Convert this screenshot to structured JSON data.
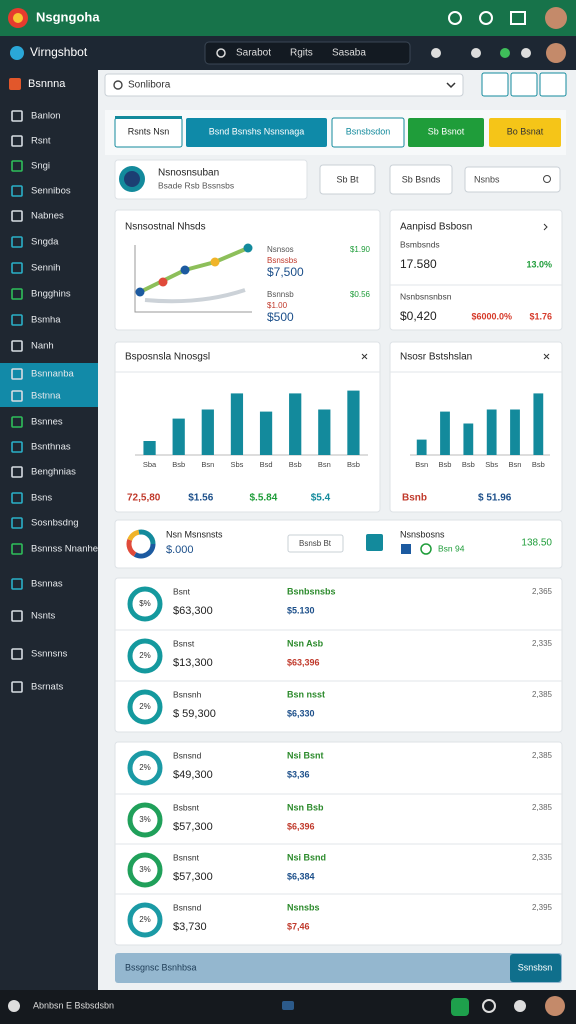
{
  "header": {
    "title": "Nsgngoha"
  },
  "toolbar": {
    "title": "Virngshbot",
    "search_items": [
      "Sarabot",
      "Rgits",
      "Sasaba"
    ]
  },
  "sidebar": {
    "title": "Bsnnna",
    "items": [
      "Banlon",
      "Rsnt",
      "Sngi",
      "Sennibos",
      "Nabnes",
      "Sngda",
      "Sennih",
      "Bngghins",
      "Bsmha",
      "Nanh",
      "Bsnnanba",
      "Bstnna",
      "Bsnnes",
      "Bsnthnas",
      "Benghnias",
      "Bsns",
      "Sosnbsdng",
      "Bsnnss Nnanhe",
      "Bsnnas",
      "Nsnts",
      "Ssnnsns",
      "Bsrnats"
    ],
    "active": [
      10,
      11
    ]
  },
  "search": {
    "placeholder": "Sonlibora"
  },
  "tabs": [
    "Rsnts Nsn",
    "Bsnd Bsnshs Nsnsnaga",
    "Bsnsbsdon",
    "Sb Bsnot",
    "Bo Bsnat"
  ],
  "profile": {
    "name": "Nsnosnsuban",
    "subtitle": "Bsade Rsb Bssnsbs",
    "buttons": [
      "Sb Bt",
      "Sb Bsnds"
    ],
    "input": "Nsnbs"
  },
  "overview": {
    "title": "Nsnsostnal Nhsds",
    "stats": [
      {
        "label": "Nsnsos",
        "value": "$7,500",
        "change": "$1.90",
        "sub": "Bsnssbs"
      },
      {
        "label": "Bsnnsb",
        "value": "$500",
        "change": "$0.56",
        "sub": "$1.00"
      }
    ]
  },
  "applied": {
    "title": "Aanpisd Bsbosn",
    "rows": [
      {
        "label": "Bsmbsnds",
        "value": "17.580",
        "changes": [
          "13.0%"
        ]
      },
      {
        "label": "Nsnbsnsnbsn",
        "value": "$0,420",
        "changes": [
          "$6000.0%",
          "$1.76"
        ]
      }
    ]
  },
  "bar_charts": [
    {
      "title": "Bsposnsla Nnosgsl",
      "categories": [
        "Sba",
        "Bsb",
        "Bsn",
        "Sbs",
        "Bsd",
        "Bsb",
        "Bsn",
        "Bsb"
      ],
      "values": [
        20,
        52,
        65,
        88,
        62,
        88,
        65,
        92
      ],
      "ylim": [
        0,
        100
      ],
      "color": "#138a9c",
      "footer": [
        "72,5,80",
        "$1.56",
        "$.5.84",
        "$5.4"
      ]
    },
    {
      "title": "Nsosr Bstshslan",
      "categories": [
        "Bsn",
        "Bsb",
        "Bsb",
        "Sbs",
        "Bsn",
        "Bsb"
      ],
      "values": [
        22,
        62,
        45,
        65,
        65,
        88
      ],
      "ylim": [
        0,
        100
      ],
      "color": "#138a9c",
      "footer": [
        "Bsnb",
        "$ 51.96"
      ]
    }
  ],
  "summary": {
    "title": "Nsn Msnsnsts",
    "value": "$.000",
    "button": "Bsnsb Bt",
    "label": "Nsnsbosns",
    "sub": "Bsn 94",
    "total": "138.50"
  },
  "lists": [
    {
      "rows": [
        {
          "percent": "$%",
          "name": "Bsnt",
          "amount": "$63,300",
          "title": "Bsnbsnsbs",
          "detail": "$5.130",
          "right": "2,365",
          "ring": "#14999e"
        },
        {
          "percent": "2%",
          "name": "Bsnst",
          "amount": "$13,300",
          "title": "Nsn Asb",
          "detail": "$63,396",
          "right": "2,335",
          "ring": "#14999e"
        },
        {
          "percent": "2%",
          "name": "Bsnsnh",
          "amount": "$ 59,300",
          "title": "Bsn nsst",
          "detail": "$6,330",
          "right": "2,385",
          "ring": "#14999e"
        }
      ]
    },
    {
      "rows": [
        {
          "percent": "2%",
          "name": "Bsnsnd",
          "amount": "$49,300",
          "title": "Nsi Bsnt",
          "detail": "$3,36",
          "right": "2,385",
          "ring": "#1b9aa5"
        },
        {
          "percent": "3%",
          "name": "Bsbsnt",
          "amount": "$57,300",
          "title": "Nsn Bsb",
          "detail": "$6,396",
          "right": "2,385",
          "ring": "#20a05a"
        },
        {
          "percent": "3%",
          "name": "Bsnsnt",
          "amount": "$57,300",
          "title": "Nsi Bsnd",
          "detail": "$6,384",
          "right": "2,335",
          "ring": "#20a05a"
        },
        {
          "percent": "2%",
          "name": "Bsnsnd",
          "amount": "$3,730",
          "title": "Nsnsbs",
          "detail": "$7,46",
          "right": "2,395",
          "ring": "#1b9aa5"
        }
      ]
    }
  ],
  "footer": {
    "label": "Bssgnsc Bsnhbsa",
    "button": "Ssnsbsn"
  },
  "taskbar": {
    "label": "Abnbsn E Bsbsdsbn"
  }
}
